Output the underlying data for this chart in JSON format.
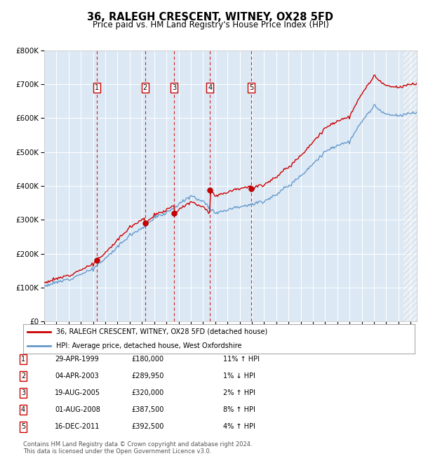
{
  "title": "36, RALEGH CRESCENT, WITNEY, OX28 5FD",
  "subtitle": "Price paid vs. HM Land Registry's House Price Index (HPI)",
  "ylim": [
    0,
    800000
  ],
  "yticks": [
    0,
    100000,
    200000,
    300000,
    400000,
    500000,
    600000,
    700000,
    800000
  ],
  "xlim_start": 1995.0,
  "xlim_end": 2025.5,
  "bg_color": "#dce9f5",
  "grid_color": "#ffffff",
  "transactions": [
    {
      "num": 1,
      "date": "29-APR-1999",
      "year": 1999.33,
      "price": 180000,
      "rel": "11% ↑ HPI"
    },
    {
      "num": 2,
      "date": "04-APR-2003",
      "year": 2003.26,
      "price": 289950,
      "rel": "1% ↓ HPI"
    },
    {
      "num": 3,
      "date": "19-AUG-2005",
      "year": 2005.63,
      "price": 320000,
      "rel": "2% ↑ HPI"
    },
    {
      "num": 4,
      "date": "01-AUG-2008",
      "year": 2008.58,
      "price": 387500,
      "rel": "8% ↑ HPI"
    },
    {
      "num": 5,
      "date": "16-DEC-2011",
      "year": 2011.96,
      "price": 392500,
      "rel": "4% ↑ HPI"
    }
  ],
  "legend_label_red": "36, RALEGH CRESCENT, WITNEY, OX28 5FD (detached house)",
  "legend_label_blue": "HPI: Average price, detached house, West Oxfordshire",
  "footer": "Contains HM Land Registry data © Crown copyright and database right 2024.\nThis data is licensed under the Open Government Licence v3.0.",
  "red_color": "#cc0000",
  "blue_color": "#6699cc",
  "marker_color": "#cc0000",
  "dashed_color": "#cc0000",
  "hpi_anchors_y": [
    1995,
    1996,
    1997,
    1998,
    1999,
    2000,
    2001,
    2002,
    2003,
    2004,
    2005,
    2006,
    2007,
    2008,
    2009,
    2010,
    2011,
    2012,
    2013,
    2014,
    2015,
    2016,
    2017,
    2018,
    2019,
    2020,
    2021,
    2022,
    2023,
    2024,
    2025
  ],
  "hpi_anchors_v": [
    105000,
    115000,
    125000,
    140000,
    155000,
    185000,
    220000,
    255000,
    275000,
    305000,
    320000,
    345000,
    370000,
    355000,
    320000,
    330000,
    340000,
    345000,
    355000,
    375000,
    400000,
    430000,
    465000,
    500000,
    520000,
    530000,
    590000,
    635000,
    610000,
    605000,
    615000
  ]
}
